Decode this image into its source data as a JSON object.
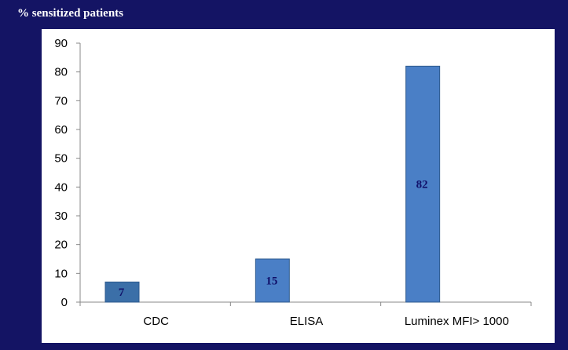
{
  "chart_data": {
    "type": "bar",
    "title": "% sensitized patients",
    "categories": [
      "CDC",
      "ELISA",
      "Luminex MFI> 1000"
    ],
    "values": [
      7,
      15,
      82
    ],
    "data_labels": [
      "7",
      "15",
      "82"
    ],
    "ylim": [
      0,
      90
    ],
    "yticks": [
      0,
      10,
      20,
      30,
      40,
      50,
      60,
      70,
      80,
      90
    ],
    "grid": false,
    "legend": "none",
    "colors": {
      "bars": [
        "#3b6fa8",
        "#4a7fc6",
        "#4a7fc6"
      ],
      "bar_edge": "#2d5a8e",
      "background": "#141464",
      "plot_background": "#ffffff",
      "data_label": "#10106a"
    }
  }
}
